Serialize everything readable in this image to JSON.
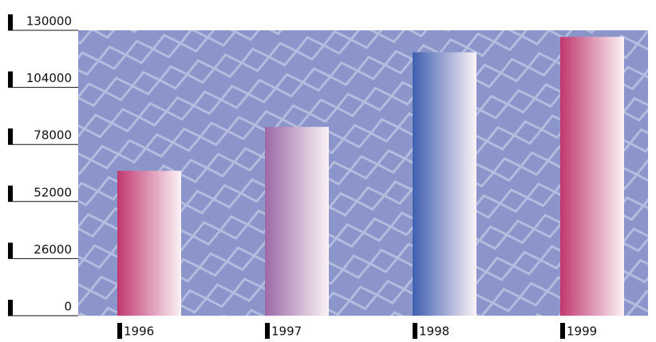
{
  "chart_data": {
    "type": "bar",
    "categories": [
      "1996",
      "1997",
      "1998",
      "1999"
    ],
    "values": [
      66000,
      86000,
      120000,
      127000
    ],
    "colors": [
      "#c0386f",
      "#9c6aa6",
      "#3f5fb0",
      "#c0386f"
    ],
    "ylim": [
      0,
      130000
    ],
    "yticks": [
      0,
      26000,
      52000,
      78000,
      104000,
      130000
    ]
  }
}
